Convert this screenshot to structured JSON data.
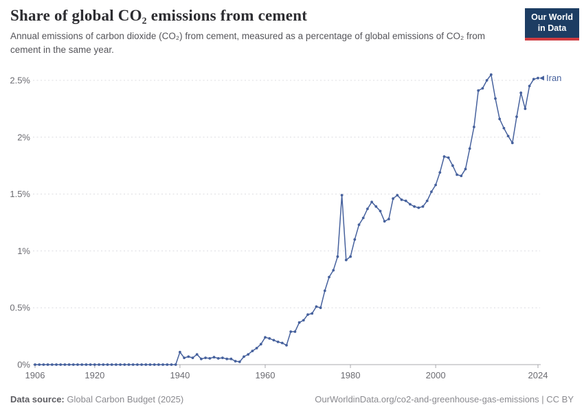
{
  "chart_data": {
    "type": "line",
    "title": "Share of global CO₂ emissions from cement",
    "subtitle": "Annual emissions of carbon dioxide (CO₂) from cement, measured as a percentage of global emissions of CO₂ from cement in the same year.",
    "xlabel": "",
    "ylabel": "",
    "grid": true,
    "legend_position": "end-of-line",
    "x_range": [
      1906,
      2024
    ],
    "y_range": [
      0,
      2.5
    ],
    "xticks": [
      1906,
      1920,
      1940,
      1960,
      1980,
      2000,
      2024
    ],
    "yticks": [
      {
        "value": 0,
        "label": "0%"
      },
      {
        "value": 0.5,
        "label": "0.5%"
      },
      {
        "value": 1,
        "label": "1%"
      },
      {
        "value": 1.5,
        "label": "1.5%"
      },
      {
        "value": 2,
        "label": "2%"
      },
      {
        "value": 2.5,
        "label": "2.5%"
      }
    ],
    "series": [
      {
        "name": "Iran",
        "color": "#46619d",
        "x": [
          1906,
          1907,
          1908,
          1909,
          1910,
          1911,
          1912,
          1913,
          1914,
          1915,
          1916,
          1917,
          1918,
          1919,
          1920,
          1921,
          1922,
          1923,
          1924,
          1925,
          1926,
          1927,
          1928,
          1929,
          1930,
          1931,
          1932,
          1933,
          1934,
          1935,
          1936,
          1937,
          1938,
          1939,
          1940,
          1941,
          1942,
          1943,
          1944,
          1945,
          1946,
          1947,
          1948,
          1949,
          1950,
          1951,
          1952,
          1953,
          1954,
          1955,
          1956,
          1957,
          1958,
          1959,
          1960,
          1961,
          1962,
          1963,
          1964,
          1965,
          1966,
          1967,
          1968,
          1969,
          1970,
          1971,
          1972,
          1973,
          1974,
          1975,
          1976,
          1977,
          1978,
          1979,
          1980,
          1981,
          1982,
          1983,
          1984,
          1985,
          1986,
          1987,
          1988,
          1989,
          1990,
          1991,
          1992,
          1993,
          1994,
          1995,
          1996,
          1997,
          1998,
          1999,
          2000,
          2001,
          2002,
          2003,
          2004,
          2005,
          2006,
          2007,
          2008,
          2009,
          2010,
          2011,
          2012,
          2013,
          2014,
          2015,
          2016,
          2017,
          2018,
          2019,
          2020,
          2021,
          2022,
          2023,
          2024
        ],
        "y": [
          0,
          0,
          0,
          0,
          0,
          0,
          0,
          0,
          0,
          0,
          0,
          0,
          0,
          0,
          0,
          0,
          0,
          0,
          0,
          0,
          0,
          0,
          0,
          0,
          0,
          0,
          0,
          0,
          0,
          0,
          0,
          0,
          0,
          0,
          0.11,
          0.06,
          0.07,
          0.06,
          0.09,
          0.05,
          0.06,
          0.055,
          0.065,
          0.055,
          0.06,
          0.05,
          0.05,
          0.03,
          0.025,
          0.07,
          0.09,
          0.12,
          0.145,
          0.18,
          0.24,
          0.23,
          0.215,
          0.2,
          0.19,
          0.17,
          0.29,
          0.29,
          0.37,
          0.39,
          0.44,
          0.45,
          0.51,
          0.5,
          0.65,
          0.77,
          0.83,
          0.95,
          1.49,
          0.92,
          0.95,
          1.1,
          1.23,
          1.29,
          1.37,
          1.43,
          1.39,
          1.35,
          1.26,
          1.28,
          1.46,
          1.49,
          1.45,
          1.44,
          1.41,
          1.39,
          1.38,
          1.39,
          1.44,
          1.52,
          1.58,
          1.69,
          1.83,
          1.82,
          1.75,
          1.67,
          1.66,
          1.72,
          1.9,
          2.09,
          2.41,
          2.43,
          2.5,
          2.55,
          2.34,
          2.16,
          2.08,
          2.01,
          1.95,
          2.18,
          2.39,
          2.25,
          2.45,
          2.51,
          2.52
        ]
      }
    ]
  },
  "logo": {
    "line1": "Our World",
    "line2": "in Data"
  },
  "footer": {
    "source_label": "Data source:",
    "source_text": "Global Carbon Budget (2025)",
    "rights": "OurWorldinData.org/co2-and-greenhouse-gas-emissions | CC BY"
  }
}
